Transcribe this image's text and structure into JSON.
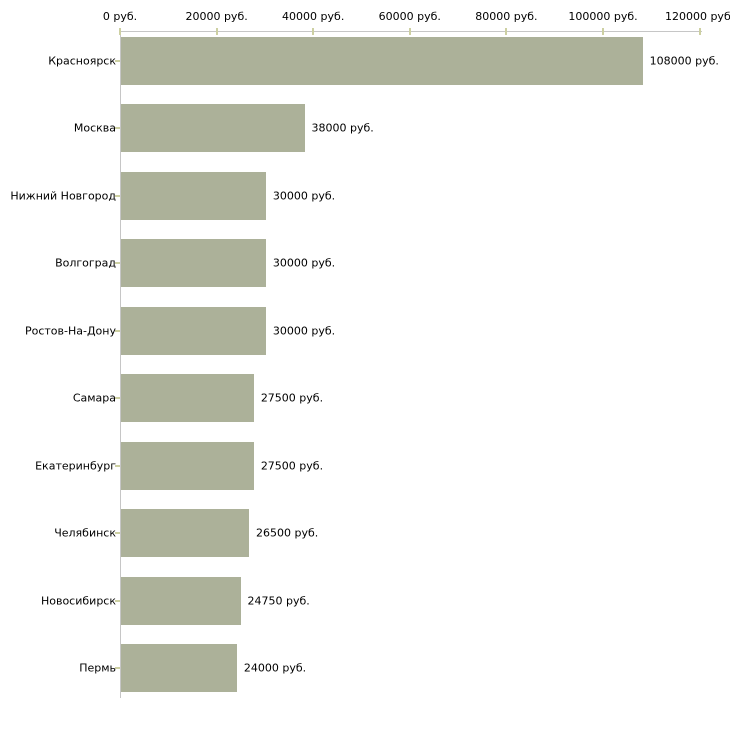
{
  "chart_data": {
    "type": "bar",
    "orientation": "horizontal",
    "title": "",
    "categories": [
      "Красноярск",
      "Москва",
      "Нижний Новгород",
      "Волгоград",
      "Ростов-На-Дону",
      "Самара",
      "Екатеринбург",
      "Челябинск",
      "Новосибирск",
      "Пермь"
    ],
    "values": [
      108000,
      38000,
      30000,
      30000,
      30000,
      27500,
      27500,
      26500,
      24750,
      24000
    ],
    "value_labels": [
      "108000 руб.",
      "38000 руб.",
      "30000 руб.",
      "30000 руб.",
      "30000 руб.",
      "27500 руб.",
      "27500 руб.",
      "26500 руб.",
      "24750 руб.",
      "24000 руб."
    ],
    "x_axis": {
      "position": "top",
      "range": [
        0,
        120000
      ],
      "ticks": [
        0,
        20000,
        40000,
        60000,
        80000,
        100000,
        120000
      ],
      "tick_labels": [
        "0 руб.",
        "20000 руб.",
        "40000 руб.",
        "60000 руб.",
        "80000 руб.",
        "100000 руб.",
        "120000 руб."
      ],
      "unit": "руб."
    },
    "y_axis": {
      "label": ""
    },
    "grid": false,
    "legend": false,
    "colors": {
      "bar": "#acb199",
      "axis_line": "#c6c6c6",
      "tick_mark": "#cdd0a2",
      "text": "#000000",
      "background": "#ffffff"
    }
  }
}
